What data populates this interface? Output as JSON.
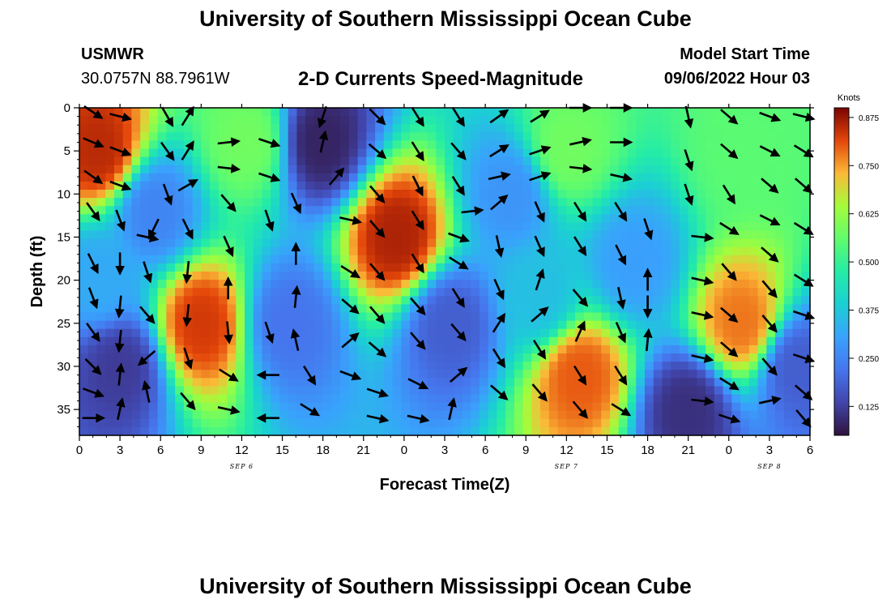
{
  "header": {
    "title": "University of Southern Mississippi Ocean Cube",
    "station_id": "USMWR",
    "station_coords": "30.0757N  88.7961W",
    "model_start_label": "Model Start Time",
    "model_start_value": "09/06/2022 Hour 03"
  },
  "footer": {
    "title": "University of Southern Mississippi Ocean Cube"
  },
  "chart_data": {
    "type": "heatmap",
    "title": "2-D Currents Speed-Magnitude",
    "xlabel": "Forecast Time(Z)",
    "ylabel": "Depth (ft)",
    "x_range_hours": [
      0,
      54
    ],
    "y_range_ft": [
      0,
      38
    ],
    "y_inverted": true,
    "x_ticks": [
      {
        "hour": 0,
        "label": "0"
      },
      {
        "hour": 3,
        "label": "3"
      },
      {
        "hour": 6,
        "label": "6"
      },
      {
        "hour": 9,
        "label": "9"
      },
      {
        "hour": 12,
        "label": "12"
      },
      {
        "hour": 15,
        "label": "15"
      },
      {
        "hour": 18,
        "label": "18"
      },
      {
        "hour": 21,
        "label": "21"
      },
      {
        "hour": 24,
        "label": "0"
      },
      {
        "hour": 27,
        "label": "3"
      },
      {
        "hour": 30,
        "label": "6"
      },
      {
        "hour": 33,
        "label": "9"
      },
      {
        "hour": 36,
        "label": "12"
      },
      {
        "hour": 39,
        "label": "15"
      },
      {
        "hour": 42,
        "label": "18"
      },
      {
        "hour": 45,
        "label": "21"
      },
      {
        "hour": 48,
        "label": "0"
      },
      {
        "hour": 51,
        "label": "3"
      },
      {
        "hour": 54,
        "label": "6"
      }
    ],
    "y_ticks": [
      0,
      5,
      10,
      15,
      20,
      25,
      30,
      35
    ],
    "date_labels": [
      {
        "hour": 12,
        "label": "SEP 6"
      },
      {
        "hour": 36,
        "label": "SEP 7"
      },
      {
        "hour": 51,
        "label": "SEP 8"
      }
    ],
    "colorbar": {
      "label": "Knots",
      "min": 0.05,
      "max": 0.9,
      "ticks": [
        "0.125",
        "0.250",
        "0.375",
        "0.500",
        "0.625",
        "0.750",
        "0.875"
      ]
    },
    "speed_field_knots": [
      {
        "hour": 1.5,
        "depth": 5,
        "speed": 0.85
      },
      {
        "hour": 1.5,
        "depth": 20,
        "speed": 0.32
      },
      {
        "hour": 3,
        "depth": 30,
        "speed": 0.12
      },
      {
        "hour": 5.5,
        "depth": 12,
        "speed": 0.25
      },
      {
        "hour": 9,
        "depth": 25,
        "speed": 0.83
      },
      {
        "hour": 12.5,
        "depth": 4,
        "speed": 0.58
      },
      {
        "hour": 15.5,
        "depth": 25,
        "speed": 0.22
      },
      {
        "hour": 17.8,
        "depth": 4,
        "speed": 0.08
      },
      {
        "hour": 23.5,
        "depth": 15,
        "speed": 0.86
      },
      {
        "hour": 27.5,
        "depth": 25,
        "speed": 0.18
      },
      {
        "hour": 32,
        "depth": 10,
        "speed": 0.28
      },
      {
        "hour": 34,
        "depth": 22,
        "speed": 0.36
      },
      {
        "hour": 36,
        "depth": 5,
        "speed": 0.58
      },
      {
        "hour": 37,
        "depth": 31,
        "speed": 0.8
      },
      {
        "hour": 41,
        "depth": 18,
        "speed": 0.3
      },
      {
        "hour": 45,
        "depth": 35,
        "speed": 0.1
      },
      {
        "hour": 49,
        "depth": 25,
        "speed": 0.78
      },
      {
        "hour": 49,
        "depth": 5,
        "speed": 0.55
      },
      {
        "hour": 53,
        "depth": 30,
        "speed": 0.18
      }
    ],
    "vectors": [
      {
        "hour": 1,
        "depth": 0.5,
        "dx": 0.6,
        "dy": 0.4
      },
      {
        "hour": 1,
        "depth": 4,
        "dx": 0.7,
        "dy": 0.3
      },
      {
        "hour": 1,
        "depth": 8,
        "dx": 0.7,
        "dy": 0.5
      },
      {
        "hour": 1,
        "depth": 12,
        "dx": 0.5,
        "dy": 0.7
      },
      {
        "hour": 1,
        "depth": 18,
        "dx": 0.4,
        "dy": 0.8
      },
      {
        "hour": 1,
        "depth": 22,
        "dx": 0.3,
        "dy": 0.8
      },
      {
        "hour": 1,
        "depth": 26,
        "dx": 0.5,
        "dy": 0.7
      },
      {
        "hour": 1,
        "depth": 30,
        "dx": 0.6,
        "dy": 0.6
      },
      {
        "hour": 1,
        "depth": 33,
        "dx": 0.8,
        "dy": 0.3
      },
      {
        "hour": 1,
        "depth": 36,
        "dx": 1,
        "dy": 0
      },
      {
        "hour": 3,
        "depth": 1,
        "dx": 0.8,
        "dy": 0.2
      },
      {
        "hour": 3,
        "depth": 5,
        "dx": 0.8,
        "dy": 0.3
      },
      {
        "hour": 3,
        "depth": 9,
        "dx": 0.8,
        "dy": 0.3
      },
      {
        "hour": 3,
        "depth": 13,
        "dx": 0.3,
        "dy": 0.8
      },
      {
        "hour": 3,
        "depth": 18,
        "dx": 0,
        "dy": 1
      },
      {
        "hour": 3,
        "depth": 23,
        "dx": -0.1,
        "dy": 1
      },
      {
        "hour": 3,
        "depth": 27,
        "dx": -0.1,
        "dy": 1
      },
      {
        "hour": 3,
        "depth": 31,
        "dx": 0.1,
        "dy": -0.9
      },
      {
        "hour": 3,
        "depth": 35,
        "dx": 0.2,
        "dy": -0.9
      },
      {
        "hour": 6.5,
        "depth": 1,
        "dx": 0.4,
        "dy": 0.7
      },
      {
        "hour": 6.5,
        "depth": 5,
        "dx": 0.5,
        "dy": 0.7
      },
      {
        "hour": 6.5,
        "depth": 10,
        "dx": 0.3,
        "dy": 0.8
      },
      {
        "hour": 5.5,
        "depth": 14,
        "dx": -0.4,
        "dy": 0.8
      },
      {
        "hour": 5,
        "depth": 15,
        "dx": 0.9,
        "dy": 0.2
      },
      {
        "hour": 5,
        "depth": 19,
        "dx": 0.3,
        "dy": 0.9
      },
      {
        "hour": 5,
        "depth": 24,
        "dx": 0.6,
        "dy": 0.7
      },
      {
        "hour": 5,
        "depth": 29,
        "dx": -0.7,
        "dy": 0.6
      },
      {
        "hour": 5,
        "depth": 33,
        "dx": -0.2,
        "dy": -0.9
      },
      {
        "hour": 8,
        "depth": 1,
        "dx": 0.5,
        "dy": -0.8
      },
      {
        "hour": 8,
        "depth": 5,
        "dx": 0.5,
        "dy": -0.8
      },
      {
        "hour": 8,
        "depth": 9,
        "dx": 0.7,
        "dy": -0.4
      },
      {
        "hour": 8,
        "depth": 14,
        "dx": 0.4,
        "dy": 0.8
      },
      {
        "hour": 8,
        "depth": 19,
        "dx": -0.1,
        "dy": 1
      },
      {
        "hour": 8,
        "depth": 24,
        "dx": -0.1,
        "dy": 1
      },
      {
        "hour": 8,
        "depth": 29,
        "dx": 0.3,
        "dy": 0.9
      },
      {
        "hour": 8,
        "depth": 34,
        "dx": 0.6,
        "dy": 0.7
      },
      {
        "hour": 11,
        "depth": 4,
        "dx": 0.9,
        "dy": -0.1
      },
      {
        "hour": 11,
        "depth": 7,
        "dx": 0.9,
        "dy": 0.1
      },
      {
        "hour": 11,
        "depth": 11,
        "dx": 0.6,
        "dy": 0.7
      },
      {
        "hour": 11,
        "depth": 16,
        "dx": 0.4,
        "dy": 0.9
      },
      {
        "hour": 11,
        "depth": 21,
        "dx": 0,
        "dy": -1
      },
      {
        "hour": 11,
        "depth": 26,
        "dx": 0.1,
        "dy": 1
      },
      {
        "hour": 11,
        "depth": 31,
        "dx": 0.8,
        "dy": 0.5
      },
      {
        "hour": 11,
        "depth": 35,
        "dx": 0.9,
        "dy": 0.2
      },
      {
        "hour": 14,
        "depth": 4,
        "dx": 0.9,
        "dy": 0.3
      },
      {
        "hour": 14,
        "depth": 8,
        "dx": 0.9,
        "dy": 0.3
      },
      {
        "hour": 14,
        "depth": 13,
        "dx": 0.3,
        "dy": 0.9
      },
      {
        "hour": 14,
        "depth": 26,
        "dx": 0.3,
        "dy": 0.9
      },
      {
        "hour": 14,
        "depth": 31,
        "dx": -0.9,
        "dy": 0
      },
      {
        "hour": 14,
        "depth": 36,
        "dx": -1,
        "dy": 0
      },
      {
        "hour": 16,
        "depth": 11,
        "dx": 0.4,
        "dy": 0.9
      },
      {
        "hour": 16,
        "depth": 17,
        "dx": 0,
        "dy": -1
      },
      {
        "hour": 16,
        "depth": 22,
        "dx": 0.1,
        "dy": -1
      },
      {
        "hour": 16,
        "depth": 27,
        "dx": -0.2,
        "dy": -0.9
      },
      {
        "hour": 17,
        "depth": 31,
        "dx": 0.5,
        "dy": 0.8
      },
      {
        "hour": 17,
        "depth": 35,
        "dx": 0.8,
        "dy": 0.5
      },
      {
        "hour": 18,
        "depth": 1,
        "dx": -0.3,
        "dy": 0.9
      },
      {
        "hour": 18,
        "depth": 4,
        "dx": 0.2,
        "dy": -0.9
      },
      {
        "hour": 19,
        "depth": 8,
        "dx": 0.6,
        "dy": -0.7
      },
      {
        "hour": 20,
        "depth": 13,
        "dx": 0.9,
        "dy": 0.2
      },
      {
        "hour": 20,
        "depth": 19,
        "dx": 0.8,
        "dy": 0.5
      },
      {
        "hour": 20,
        "depth": 23,
        "dx": 0.7,
        "dy": 0.6
      },
      {
        "hour": 20,
        "depth": 27,
        "dx": 0.7,
        "dy": -0.6
      },
      {
        "hour": 20,
        "depth": 31,
        "dx": 0.8,
        "dy": 0.3
      },
      {
        "hour": 22,
        "depth": 1,
        "dx": 0.6,
        "dy": 0.6
      },
      {
        "hour": 22,
        "depth": 5,
        "dx": 0.7,
        "dy": 0.6
      },
      {
        "hour": 22,
        "depth": 10,
        "dx": 0.6,
        "dy": 0.7
      },
      {
        "hour": 22,
        "depth": 14,
        "dx": 0.6,
        "dy": 0.7
      },
      {
        "hour": 22,
        "depth": 19,
        "dx": 0.6,
        "dy": 0.7
      },
      {
        "hour": 22,
        "depth": 24,
        "dx": 0.6,
        "dy": 0.7
      },
      {
        "hour": 22,
        "depth": 28,
        "dx": 0.7,
        "dy": 0.6
      },
      {
        "hour": 22,
        "depth": 33,
        "dx": 0.9,
        "dy": 0.3
      },
      {
        "hour": 22,
        "depth": 36,
        "dx": 0.9,
        "dy": 0.2
      },
      {
        "hour": 25,
        "depth": 1,
        "dx": 0.5,
        "dy": 0.8
      },
      {
        "hour": 25,
        "depth": 5,
        "dx": 0.5,
        "dy": 0.8
      },
      {
        "hour": 25,
        "depth": 9,
        "dx": 0.4,
        "dy": 0.8
      },
      {
        "hour": 25,
        "depth": 13,
        "dx": 0.5,
        "dy": 0.8
      },
      {
        "hour": 25,
        "depth": 18,
        "dx": 0.5,
        "dy": 0.8
      },
      {
        "hour": 25,
        "depth": 23,
        "dx": 0.6,
        "dy": 0.7
      },
      {
        "hour": 25,
        "depth": 27,
        "dx": 0.6,
        "dy": 0.7
      },
      {
        "hour": 25,
        "depth": 32,
        "dx": 0.8,
        "dy": 0.4
      },
      {
        "hour": 25,
        "depth": 36,
        "dx": 0.9,
        "dy": 0.2
      },
      {
        "hour": 28,
        "depth": 1,
        "dx": 0.5,
        "dy": 0.8
      },
      {
        "hour": 28,
        "depth": 5,
        "dx": 0.6,
        "dy": 0.7
      },
      {
        "hour": 28,
        "depth": 9,
        "dx": 0.5,
        "dy": 0.8
      },
      {
        "hour": 29,
        "depth": 12,
        "dx": 0.9,
        "dy": -0.1
      },
      {
        "hour": 28,
        "depth": 15,
        "dx": 0.8,
        "dy": 0.3
      },
      {
        "hour": 28,
        "depth": 18,
        "dx": 0.8,
        "dy": 0.5
      },
      {
        "hour": 28,
        "depth": 22,
        "dx": 0.5,
        "dy": 0.8
      },
      {
        "hour": 28,
        "depth": 26,
        "dx": 0.6,
        "dy": 0.7
      },
      {
        "hour": 28,
        "depth": 31,
        "dx": 0.7,
        "dy": -0.6
      },
      {
        "hour": 27.5,
        "depth": 35,
        "dx": 0.2,
        "dy": -0.9
      },
      {
        "hour": 31,
        "depth": 1,
        "dx": 0.7,
        "dy": -0.5
      },
      {
        "hour": 31,
        "depth": 5,
        "dx": 0.8,
        "dy": -0.5
      },
      {
        "hour": 31,
        "depth": 8,
        "dx": 0.9,
        "dy": -0.2
      },
      {
        "hour": 31,
        "depth": 11,
        "dx": 0.7,
        "dy": -0.6
      },
      {
        "hour": 31,
        "depth": 16,
        "dx": 0.2,
        "dy": 0.9
      },
      {
        "hour": 31,
        "depth": 21,
        "dx": 0.4,
        "dy": 0.9
      },
      {
        "hour": 31,
        "depth": 25,
        "dx": 0.5,
        "dy": -0.8
      },
      {
        "hour": 31,
        "depth": 29,
        "dx": 0.5,
        "dy": 0.8
      },
      {
        "hour": 31,
        "depth": 33,
        "dx": 0.7,
        "dy": 0.6
      },
      {
        "hour": 34,
        "depth": 1,
        "dx": 0.8,
        "dy": -0.5
      },
      {
        "hour": 34,
        "depth": 5,
        "dx": 0.9,
        "dy": -0.3
      },
      {
        "hour": 34,
        "depth": 8,
        "dx": 0.9,
        "dy": -0.3
      },
      {
        "hour": 34,
        "depth": 12,
        "dx": 0.4,
        "dy": 0.9
      },
      {
        "hour": 34,
        "depth": 16,
        "dx": 0.4,
        "dy": 0.9
      },
      {
        "hour": 34,
        "depth": 20,
        "dx": 0.3,
        "dy": -0.9
      },
      {
        "hour": 34,
        "depth": 24,
        "dx": 0.7,
        "dy": -0.6
      },
      {
        "hour": 34,
        "depth": 28,
        "dx": 0.5,
        "dy": 0.8
      },
      {
        "hour": 34,
        "depth": 33,
        "dx": 0.6,
        "dy": 0.7
      },
      {
        "hour": 37,
        "depth": 0,
        "dx": 0.9,
        "dy": 0
      },
      {
        "hour": 37,
        "depth": 4,
        "dx": 0.9,
        "dy": -0.2
      },
      {
        "hour": 37,
        "depth": 7,
        "dx": 0.9,
        "dy": 0.1
      },
      {
        "hour": 37,
        "depth": 12,
        "dx": 0.5,
        "dy": 0.8
      },
      {
        "hour": 37,
        "depth": 16,
        "dx": 0.5,
        "dy": 0.8
      },
      {
        "hour": 37,
        "depth": 22,
        "dx": 0.6,
        "dy": 0.7
      },
      {
        "hour": 37,
        "depth": 26,
        "dx": 0.4,
        "dy": -0.9
      },
      {
        "hour": 37,
        "depth": 31,
        "dx": 0.5,
        "dy": 0.8
      },
      {
        "hour": 37,
        "depth": 35,
        "dx": 0.6,
        "dy": 0.7
      },
      {
        "hour": 40,
        "depth": 0,
        "dx": 0.9,
        "dy": 0
      },
      {
        "hour": 40,
        "depth": 4,
        "dx": 0.9,
        "dy": 0
      },
      {
        "hour": 40,
        "depth": 8,
        "dx": 0.9,
        "dy": 0.2
      },
      {
        "hour": 40,
        "depth": 12,
        "dx": 0.5,
        "dy": 0.8
      },
      {
        "hour": 40,
        "depth": 17,
        "dx": 0.4,
        "dy": 0.8
      },
      {
        "hour": 40,
        "depth": 22,
        "dx": 0.2,
        "dy": 0.9
      },
      {
        "hour": 40,
        "depth": 26,
        "dx": 0.4,
        "dy": 0.9
      },
      {
        "hour": 40,
        "depth": 31,
        "dx": 0.5,
        "dy": 0.8
      },
      {
        "hour": 40,
        "depth": 35,
        "dx": 0.8,
        "dy": 0.5
      },
      {
        "hour": 42,
        "depth": 14,
        "dx": 0.3,
        "dy": 0.9
      },
      {
        "hour": 42,
        "depth": 20,
        "dx": 0,
        "dy": -1
      },
      {
        "hour": 42,
        "depth": 23,
        "dx": 0,
        "dy": 1
      },
      {
        "hour": 42,
        "depth": 27,
        "dx": 0.1,
        "dy": -1
      },
      {
        "hour": 45,
        "depth": 1,
        "dx": 0.2,
        "dy": 0.9
      },
      {
        "hour": 45,
        "depth": 6,
        "dx": 0.3,
        "dy": 0.9
      },
      {
        "hour": 45,
        "depth": 10,
        "dx": 0.3,
        "dy": 0.9
      },
      {
        "hour": 46,
        "depth": 15,
        "dx": 0.9,
        "dy": 0.1
      },
      {
        "hour": 46,
        "depth": 20,
        "dx": 0.9,
        "dy": 0.2
      },
      {
        "hour": 46,
        "depth": 24,
        "dx": 0.9,
        "dy": 0.2
      },
      {
        "hour": 46,
        "depth": 29,
        "dx": 0.9,
        "dy": 0.2
      },
      {
        "hour": 46,
        "depth": 34,
        "dx": 0.9,
        "dy": 0.1
      },
      {
        "hour": 48,
        "depth": 1,
        "dx": 0.7,
        "dy": 0.6
      },
      {
        "hour": 48,
        "depth": 5,
        "dx": 0.7,
        "dy": 0.6
      },
      {
        "hour": 48,
        "depth": 10,
        "dx": 0.5,
        "dy": 0.8
      },
      {
        "hour": 48,
        "depth": 14,
        "dx": 0.8,
        "dy": 0.5
      },
      {
        "hour": 48,
        "depth": 19,
        "dx": 0.6,
        "dy": 0.7
      },
      {
        "hour": 48,
        "depth": 24,
        "dx": 0.7,
        "dy": 0.6
      },
      {
        "hour": 48,
        "depth": 28,
        "dx": 0.7,
        "dy": 0.6
      },
      {
        "hour": 48,
        "depth": 32,
        "dx": 0.8,
        "dy": 0.5
      },
      {
        "hour": 48,
        "depth": 36,
        "dx": 0.9,
        "dy": 0.3
      },
      {
        "hour": 51,
        "depth": 1,
        "dx": 0.8,
        "dy": 0.3
      },
      {
        "hour": 51,
        "depth": 5,
        "dx": 0.8,
        "dy": 0.4
      },
      {
        "hour": 51,
        "depth": 9,
        "dx": 0.7,
        "dy": 0.6
      },
      {
        "hour": 51,
        "depth": 13,
        "dx": 0.8,
        "dy": 0.4
      },
      {
        "hour": 51,
        "depth": 17,
        "dx": 0.7,
        "dy": 0.6
      },
      {
        "hour": 51,
        "depth": 21,
        "dx": 0.6,
        "dy": 0.7
      },
      {
        "hour": 51,
        "depth": 25,
        "dx": 0.6,
        "dy": 0.7
      },
      {
        "hour": 51,
        "depth": 30,
        "dx": 0.6,
        "dy": 0.7
      },
      {
        "hour": 51,
        "depth": 34,
        "dx": 0.9,
        "dy": -0.2
      },
      {
        "hour": 53.5,
        "depth": 1,
        "dx": 0.8,
        "dy": 0.2
      },
      {
        "hour": 53.5,
        "depth": 5,
        "dx": 0.8,
        "dy": 0.5
      },
      {
        "hour": 53.5,
        "depth": 9,
        "dx": 0.7,
        "dy": 0.6
      },
      {
        "hour": 53.5,
        "depth": 14,
        "dx": 0.8,
        "dy": 0.5
      },
      {
        "hour": 53.5,
        "depth": 20,
        "dx": 0.8,
        "dy": 0.5
      },
      {
        "hour": 53.5,
        "depth": 24,
        "dx": 0.9,
        "dy": 0.3
      },
      {
        "hour": 53.5,
        "depth": 29,
        "dx": 0.9,
        "dy": 0.3
      },
      {
        "hour": 53.5,
        "depth": 33,
        "dx": 0.7,
        "dy": 0.6
      },
      {
        "hour": 53.5,
        "depth": 36,
        "dx": 0.6,
        "dy": 0.7
      }
    ]
  }
}
